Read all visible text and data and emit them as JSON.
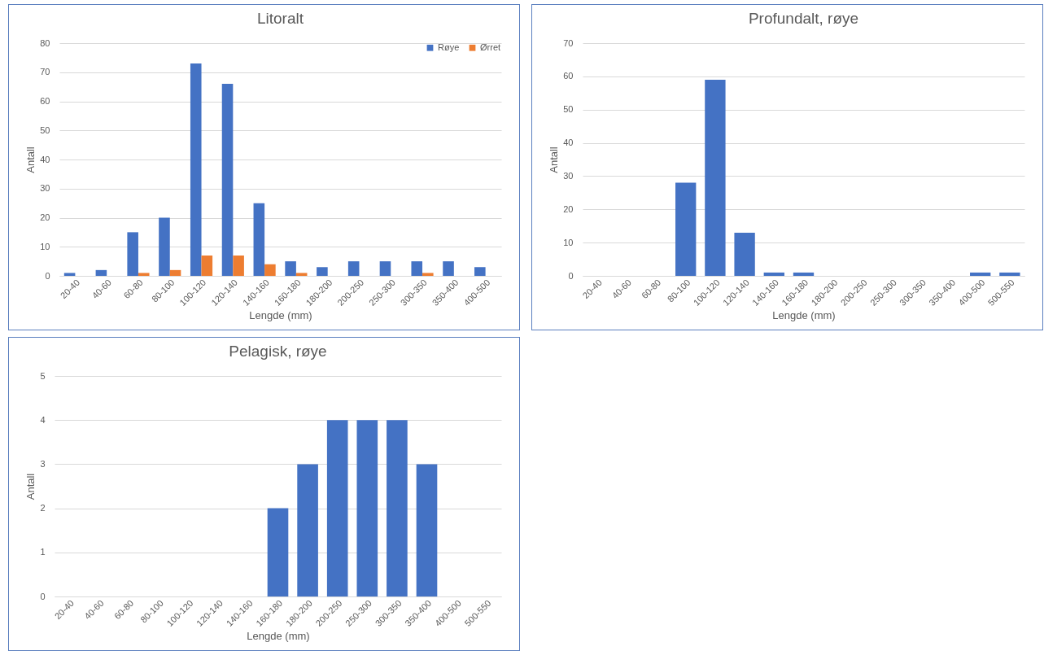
{
  "chart_data": [
    {
      "type": "bar",
      "title": "Litoralt",
      "xlabel": "Lengde (mm)",
      "ylabel": "Antall",
      "categories": [
        "20-40",
        "40-60",
        "60-80",
        "80-100",
        "100-120",
        "120-140",
        "140-160",
        "160-180",
        "180-200",
        "200-250",
        "250-300",
        "300-350",
        "350-400",
        "400-500"
      ],
      "series": [
        {
          "name": "Røye",
          "color": "#4472c4",
          "values": [
            1,
            2,
            15,
            20,
            73,
            66,
            25,
            5,
            3,
            5,
            5,
            5,
            5,
            3
          ]
        },
        {
          "name": "Ørret",
          "color": "#ed7d31",
          "values": [
            0,
            0,
            1,
            2,
            7,
            7,
            4,
            1,
            0,
            0,
            0,
            1,
            0,
            0
          ]
        }
      ],
      "ylim": [
        0,
        80
      ],
      "yticks": [
        0,
        10,
        20,
        30,
        40,
        50,
        60,
        70,
        80
      ],
      "grid": "y",
      "legend": "top right"
    },
    {
      "type": "bar",
      "title": "Profundalt, røye",
      "xlabel": "Lengde (mm)",
      "ylabel": "Antall",
      "categories": [
        "20-40",
        "40-60",
        "60-80",
        "80-100",
        "100-120",
        "120-140",
        "140-160",
        "160-180",
        "180-200",
        "200-250",
        "250-300",
        "300-350",
        "350-400",
        "400-500",
        "500-550"
      ],
      "series": [
        {
          "color": "#4472c4",
          "values": [
            0,
            0,
            0,
            28,
            59,
            13,
            1,
            1,
            0,
            0,
            0,
            0,
            0,
            1,
            1
          ]
        }
      ],
      "ylim": [
        0,
        70
      ],
      "yticks": [
        0,
        10,
        20,
        30,
        40,
        50,
        60,
        70
      ],
      "grid": "y"
    },
    {
      "type": "bar",
      "title": "Pelagisk, røye",
      "xlabel": "Lengde (mm)",
      "ylabel": "Antall",
      "categories": [
        "20-40",
        "40-60",
        "60-80",
        "80-100",
        "100-120",
        "120-140",
        "140-160",
        "160-180",
        "180-200",
        "200-250",
        "250-300",
        "300-350",
        "350-400",
        "400-500",
        "500-550"
      ],
      "series": [
        {
          "color": "#4472c4",
          "values": [
            0,
            0,
            0,
            0,
            0,
            0,
            0,
            2,
            3,
            4,
            4,
            4,
            3,
            0,
            0
          ]
        }
      ],
      "ylim": [
        0,
        5
      ],
      "yticks": [
        0,
        1,
        2,
        3,
        4,
        5
      ],
      "grid": "y"
    }
  ]
}
